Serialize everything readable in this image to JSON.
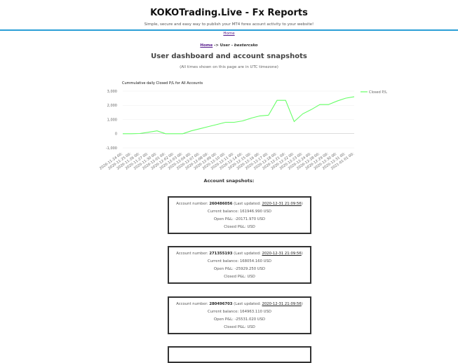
{
  "site": {
    "title": "KOKOTrading.Live - Fx Reports",
    "tagline": "Simple, secure and easy way to publish your MT4 forex acount activity to your website!"
  },
  "nav": {
    "home_label": "Home"
  },
  "breadcrumb": {
    "home": "Home",
    "separator": "->",
    "user_label": "User -",
    "username": "bestercsko"
  },
  "page": {
    "heading": "User dashboard and account snapshots",
    "timezone_note": "(All times shown on this page are in UTC timezone)"
  },
  "chart_data": {
    "type": "line",
    "title": "Cummulative daily Closed P/L for All Accounts",
    "series": [
      {
        "name": "Closed P/L",
        "color": "#66ff66",
        "values": [
          0,
          0,
          10,
          100,
          200,
          0,
          0,
          0,
          200,
          350,
          500,
          650,
          800,
          800,
          900,
          1100,
          1250,
          1300,
          2350,
          2350,
          850,
          1400,
          1700,
          2050,
          2050,
          2300,
          2500,
          2600
        ]
      }
    ],
    "x": [
      "2020-11-24 00:",
      "2020-11-25 00:",
      "2020-11-26 00:",
      "2020-11-27 00:",
      "2020-11-30 00:",
      "2020-12-01 00:",
      "2020-12-02 00:",
      "2020-12-03 00:",
      "2020-12-04 00:",
      "2020-12-07 00:",
      "2020-12-08 00:",
      "2020-12-09 00:",
      "2020-12-10 00:",
      "2020-12-11 00:",
      "2020-12-14 00:",
      "2020-12-15 00:",
      "2020-12-16 00:",
      "2020-12-17 00:",
      "2020-12-18 00:",
      "2020-12-21 00:",
      "2020-12-22 00:",
      "2020-12-23 00:",
      "2020-12-24 00:",
      "2020-12-28 00:",
      "2020-12-29 00:",
      "2020-12-30 00:",
      "2020-12-31 00:",
      "2021-01-01 00:"
    ],
    "y_ticks": [
      "3,000",
      "2,000",
      "1,000",
      "0",
      "-1,000"
    ],
    "y_tick_values": [
      3000,
      2000,
      1000,
      0,
      -1000
    ],
    "ylim": [
      -1000,
      3000
    ],
    "grid": true,
    "legend": "top-right"
  },
  "snapshots": {
    "heading": "Account snapshots:",
    "labels": {
      "account": "Account number:",
      "updated_prefix": "(Last updated:",
      "updated_suffix": ")",
      "balance": "Current balance:",
      "open_pl": "Open P&L:",
      "closed_pl": "Closed P&L:"
    },
    "accounts": [
      {
        "number": "260486056",
        "updated": "2020-12-31 21:09:56",
        "balance": "161946.990 USD",
        "open_pl": "-20171.970 USD",
        "closed_pl": "USD"
      },
      {
        "number": "271355193",
        "updated": "2020-12-31 21:09:56",
        "balance": "168054.160 USD",
        "open_pl": "-25929.250 USD",
        "closed_pl": "USD"
      },
      {
        "number": "280496703",
        "updated": "2020-12-31 21:09:56",
        "balance": "164963.110 USD",
        "open_pl": "-25531.020 USD",
        "closed_pl": "USD"
      }
    ]
  }
}
